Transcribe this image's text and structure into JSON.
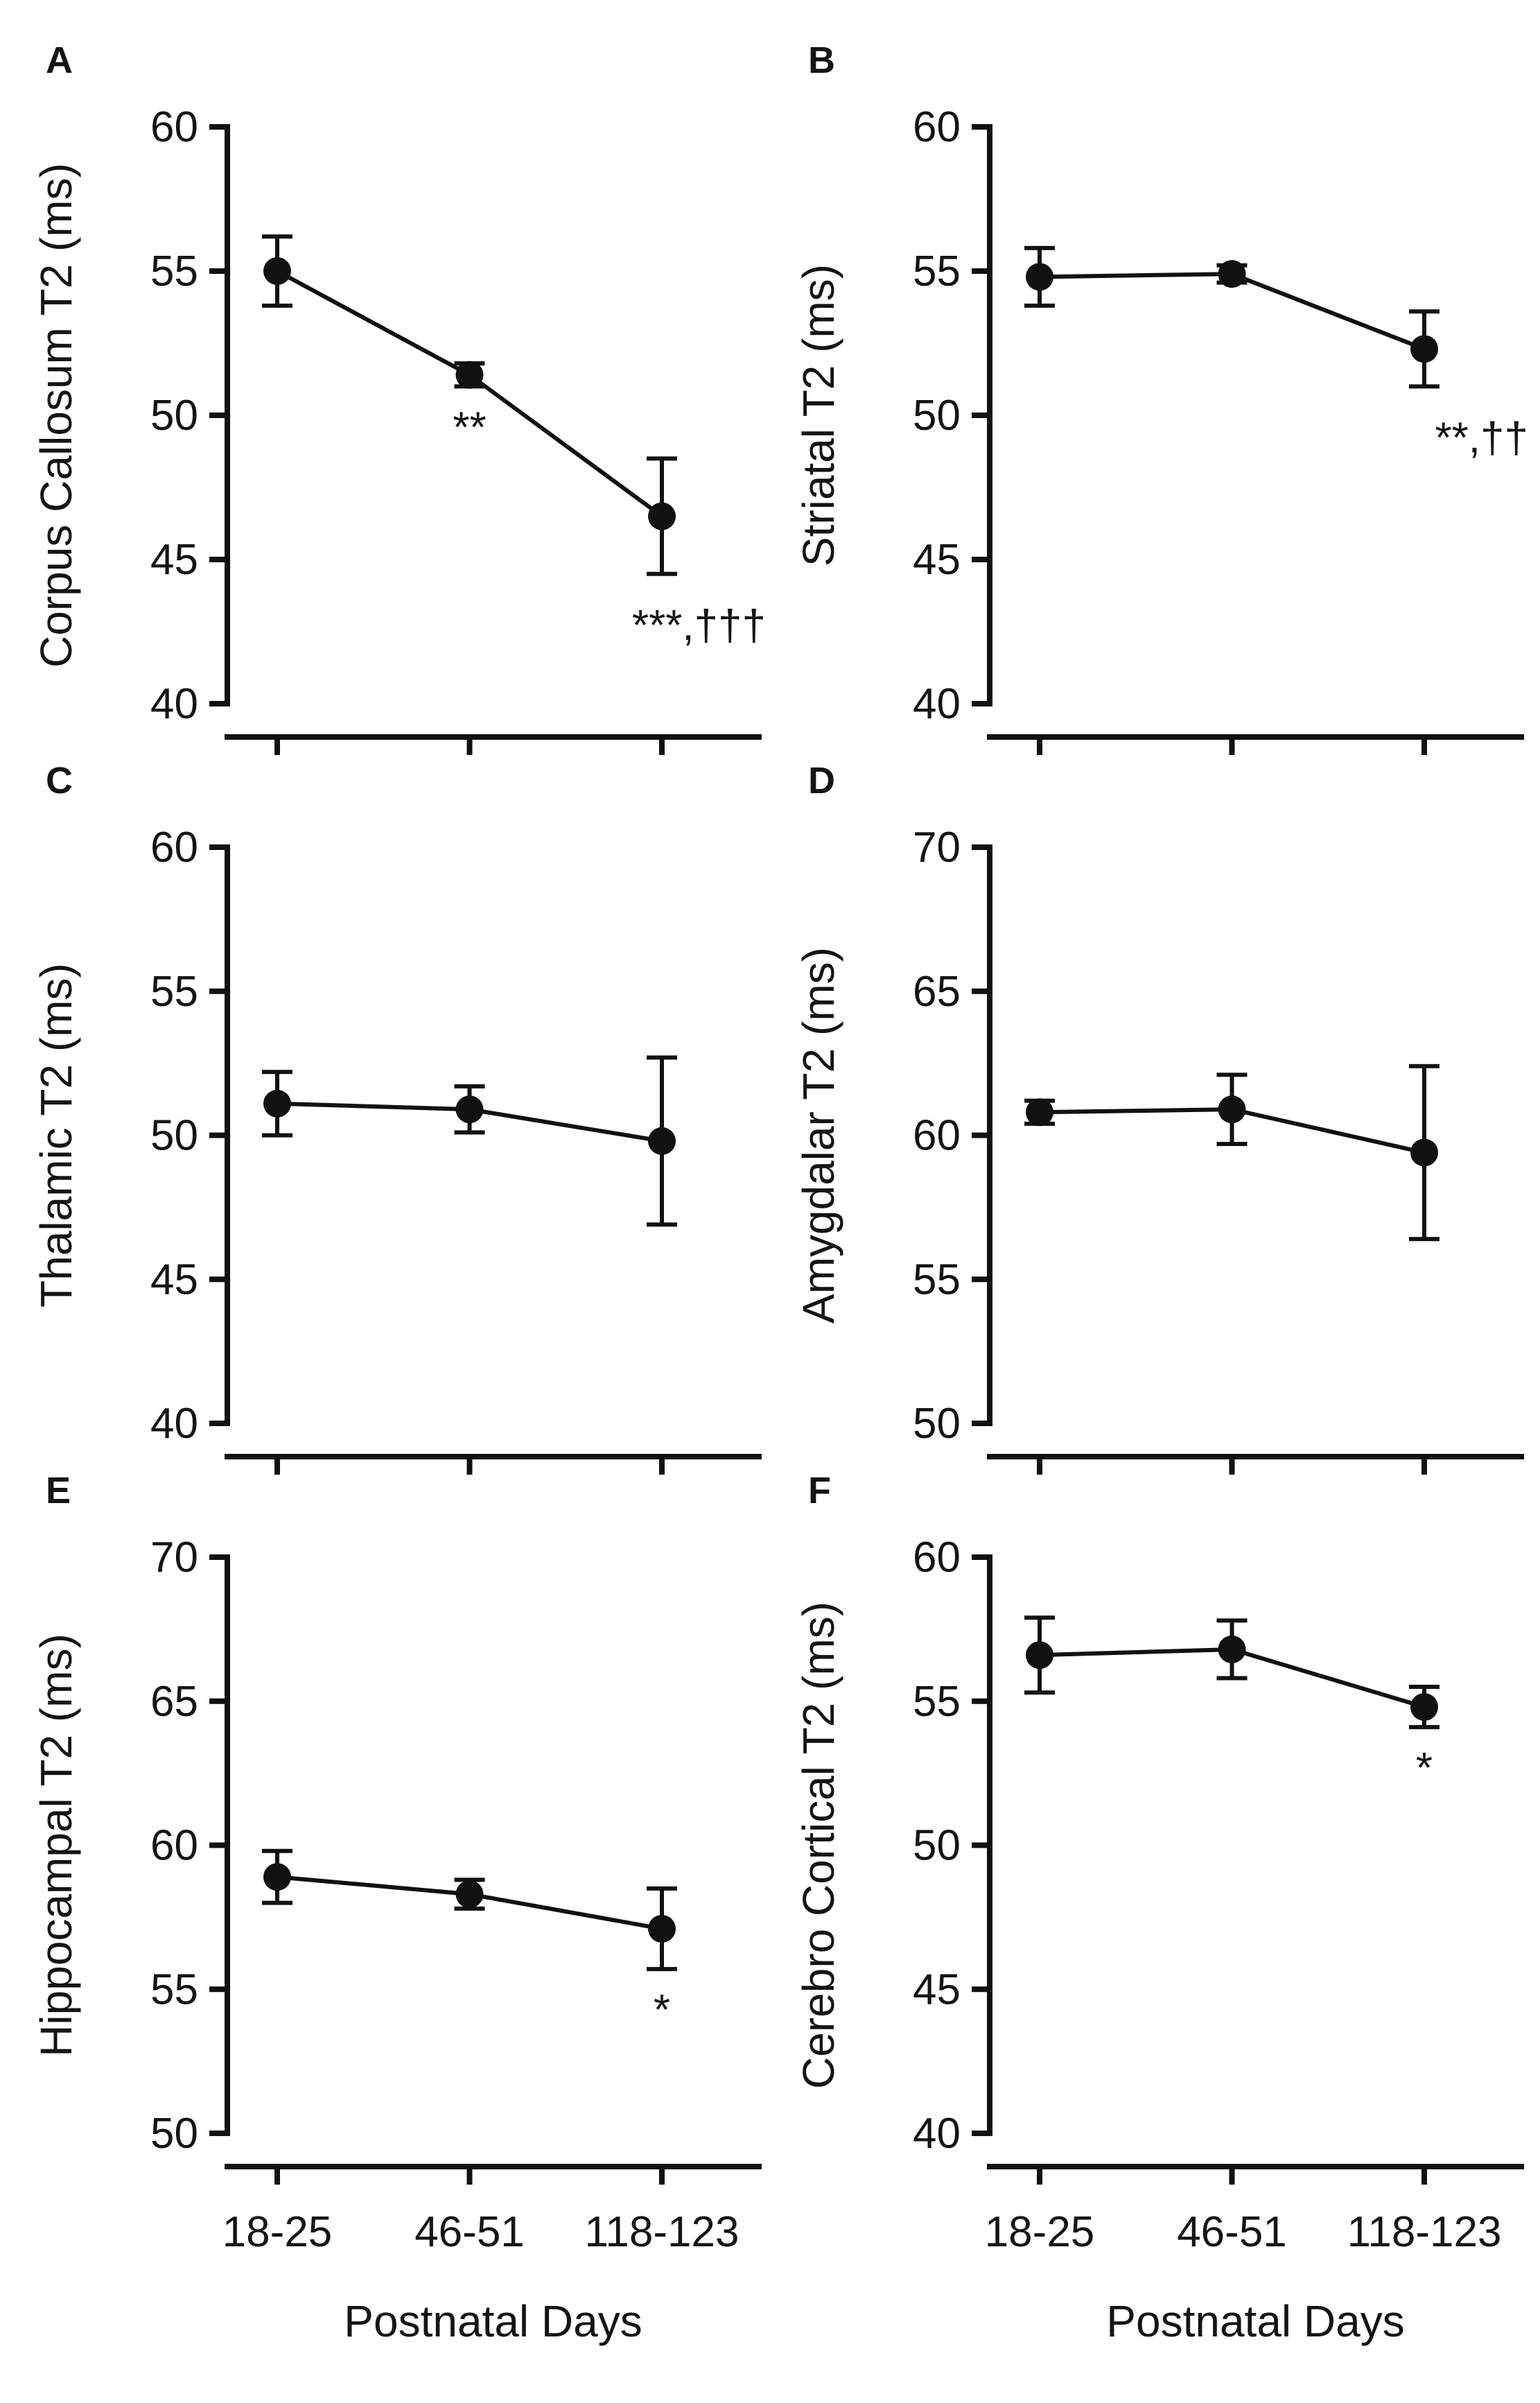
{
  "x_title": "Postnatal Days",
  "chart_data": [
    {
      "panel": "A",
      "type": "line",
      "categories": [
        "18-25",
        "46-51",
        "118-123"
      ],
      "ylabel": "Corpus Callosum T2 (ms)",
      "ylim": [
        40,
        60
      ],
      "yticks": [
        40,
        45,
        50,
        55,
        60
      ],
      "values": [
        55.0,
        51.4,
        46.5
      ],
      "errors": [
        1.2,
        0.4,
        2.0
      ],
      "annotations": [
        "",
        "**",
        "***,†††"
      ],
      "show_xticklabels": false
    },
    {
      "panel": "B",
      "type": "line",
      "categories": [
        "18-25",
        "46-51",
        "118-123"
      ],
      "ylabel": "Striatal T2 (ms)",
      "ylim": [
        40,
        60
      ],
      "yticks": [
        40,
        45,
        50,
        55,
        60
      ],
      "values": [
        54.8,
        54.9,
        52.3
      ],
      "errors": [
        1.0,
        0.3,
        1.3
      ],
      "annotations": [
        "",
        "",
        "**,††"
      ],
      "show_xticklabels": false
    },
    {
      "panel": "C",
      "type": "line",
      "categories": [
        "18-25",
        "46-51",
        "118-123"
      ],
      "ylabel": "Thalamic T2 (ms)",
      "ylim": [
        40,
        60
      ],
      "yticks": [
        40,
        45,
        50,
        55,
        60
      ],
      "values": [
        51.1,
        50.9,
        49.8
      ],
      "errors": [
        1.1,
        0.8,
        2.9
      ],
      "annotations": [
        "",
        "",
        ""
      ],
      "show_xticklabels": false
    },
    {
      "panel": "D",
      "type": "line",
      "categories": [
        "18-25",
        "46-51",
        "118-123"
      ],
      "ylabel": "Amygdalar T2 (ms)",
      "ylim": [
        50,
        70
      ],
      "yticks": [
        50,
        55,
        60,
        65,
        70
      ],
      "values": [
        60.8,
        60.9,
        59.4
      ],
      "errors": [
        0.4,
        1.2,
        3.0
      ],
      "annotations": [
        "",
        "",
        ""
      ],
      "show_xticklabels": false
    },
    {
      "panel": "E",
      "type": "line",
      "categories": [
        "18-25",
        "46-51",
        "118-123"
      ],
      "ylabel": "Hippocampal T2 (ms)",
      "ylim": [
        50,
        70
      ],
      "yticks": [
        50,
        55,
        60,
        65,
        70
      ],
      "values": [
        58.9,
        58.3,
        57.1
      ],
      "errors": [
        0.9,
        0.5,
        1.4
      ],
      "annotations": [
        "",
        "",
        "*"
      ],
      "show_xticklabels": true
    },
    {
      "panel": "F",
      "type": "line",
      "categories": [
        "18-25",
        "46-51",
        "118-123"
      ],
      "ylabel": "Cerebro Cortical T2 (ms)",
      "ylim": [
        40,
        60
      ],
      "yticks": [
        40,
        45,
        50,
        55,
        60
      ],
      "values": [
        56.6,
        56.8,
        54.8
      ],
      "errors": [
        1.3,
        1.0,
        0.7
      ],
      "annotations": [
        "",
        "",
        "*"
      ],
      "show_xticklabels": true
    }
  ]
}
